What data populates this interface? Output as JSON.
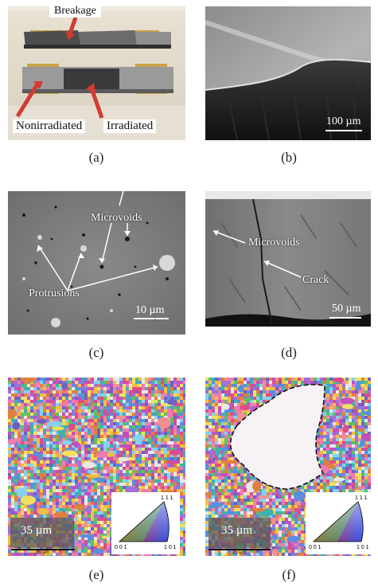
{
  "panels": {
    "a": {
      "caption": "(a)",
      "labels": {
        "breakage": "Breakage",
        "nonirradiated": "Nonirradiated",
        "irradiated": "Irradiated"
      }
    },
    "b": {
      "caption": "(b)",
      "scale": "100 µm"
    },
    "c": {
      "caption": "(c)",
      "labels": {
        "microvoids": "Microvoids",
        "protrusions": "Protrusions"
      },
      "scale": "10 µm"
    },
    "d": {
      "caption": "(d)",
      "labels": {
        "microvoids": "Microvoids",
        "crack": "Crack"
      },
      "scale": "50 µm"
    },
    "e": {
      "caption": "(e)",
      "scale": "35 µm",
      "scale_small": "35 µm",
      "legend": {
        "top": "1 1 1",
        "left": "0 0 1",
        "right": "1 0 1"
      }
    },
    "f": {
      "caption": "(f)",
      "scale": "35 µm",
      "scale_small": "35 µm",
      "legend": {
        "top": "1 1 1",
        "left": "0 0 1",
        "right": "1 0 1"
      }
    }
  },
  "colors": {
    "arrow_red": "#d23a32",
    "sem_gray": "#7a7a7a"
  }
}
